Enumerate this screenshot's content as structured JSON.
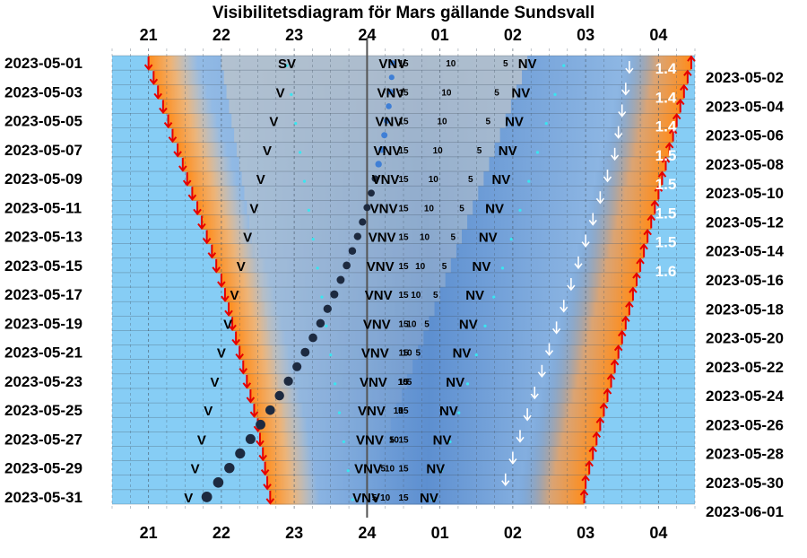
{
  "chart_data": {
    "type": "heatmap",
    "title": "Visibilitetsdiagram för Mars gällande Sundsvall",
    "x_ticks": [
      "21",
      "22",
      "23",
      "24",
      "01",
      "02",
      "03",
      "04"
    ],
    "x_range_hours": [
      20.5,
      28.5
    ],
    "dates_left": [
      "2023-05-01",
      "2023-05-03",
      "2023-05-05",
      "2023-05-07",
      "2023-05-09",
      "2023-05-11",
      "2023-05-13",
      "2023-05-15",
      "2023-05-17",
      "2023-05-19",
      "2023-05-21",
      "2023-05-23",
      "2023-05-25",
      "2023-05-27",
      "2023-05-29",
      "2023-05-31"
    ],
    "dates_right": [
      "2023-05-02",
      "2023-05-04",
      "2023-05-06",
      "2023-05-08",
      "2023-05-10",
      "2023-05-12",
      "2023-05-14",
      "2023-05-16",
      "2023-05-18",
      "2023-05-20",
      "2023-05-22",
      "2023-05-24",
      "2023-05-26",
      "2023-05-28",
      "2023-05-30",
      "2023-06-01"
    ],
    "sunset_hours": [
      21.0,
      21.07,
      21.13,
      21.2,
      21.27,
      21.33,
      21.4,
      21.47,
      21.53,
      21.6,
      21.67,
      21.73,
      21.8,
      21.87,
      21.93,
      22.0,
      22.05,
      22.1,
      22.15,
      22.2,
      22.25,
      22.3,
      22.35,
      22.4,
      22.45,
      22.5,
      22.53,
      22.57,
      22.6,
      22.63,
      22.67
    ],
    "sunrise_hours": [
      28.45,
      28.4,
      28.35,
      28.3,
      28.25,
      28.2,
      28.15,
      28.1,
      28.05,
      28.0,
      27.95,
      27.9,
      27.85,
      27.8,
      27.75,
      27.7,
      27.65,
      27.6,
      27.55,
      27.5,
      27.45,
      27.4,
      27.35,
      27.3,
      27.25,
      27.2,
      27.15,
      27.1,
      27.05,
      27.0,
      26.98
    ],
    "twilight_end_hours": [
      27.6,
      27.55,
      27.5,
      27.45,
      27.4,
      27.3,
      27.2,
      27.1,
      27.0,
      26.9,
      26.8,
      26.7,
      26.6,
      26.5,
      26.4,
      26.3,
      26.2,
      26.1,
      26.0,
      25.9
    ],
    "magnitude_labels": [
      "1.4",
      "1.4",
      "1.4",
      "1.5",
      "1.5",
      "1.5",
      "1.5",
      "1.6"
    ],
    "direction_labels": [
      "V",
      "NV",
      "SV",
      "VNV"
    ],
    "altitude_labels": [
      "5",
      "10",
      "15"
    ],
    "midnight_line_hour": 24
  }
}
